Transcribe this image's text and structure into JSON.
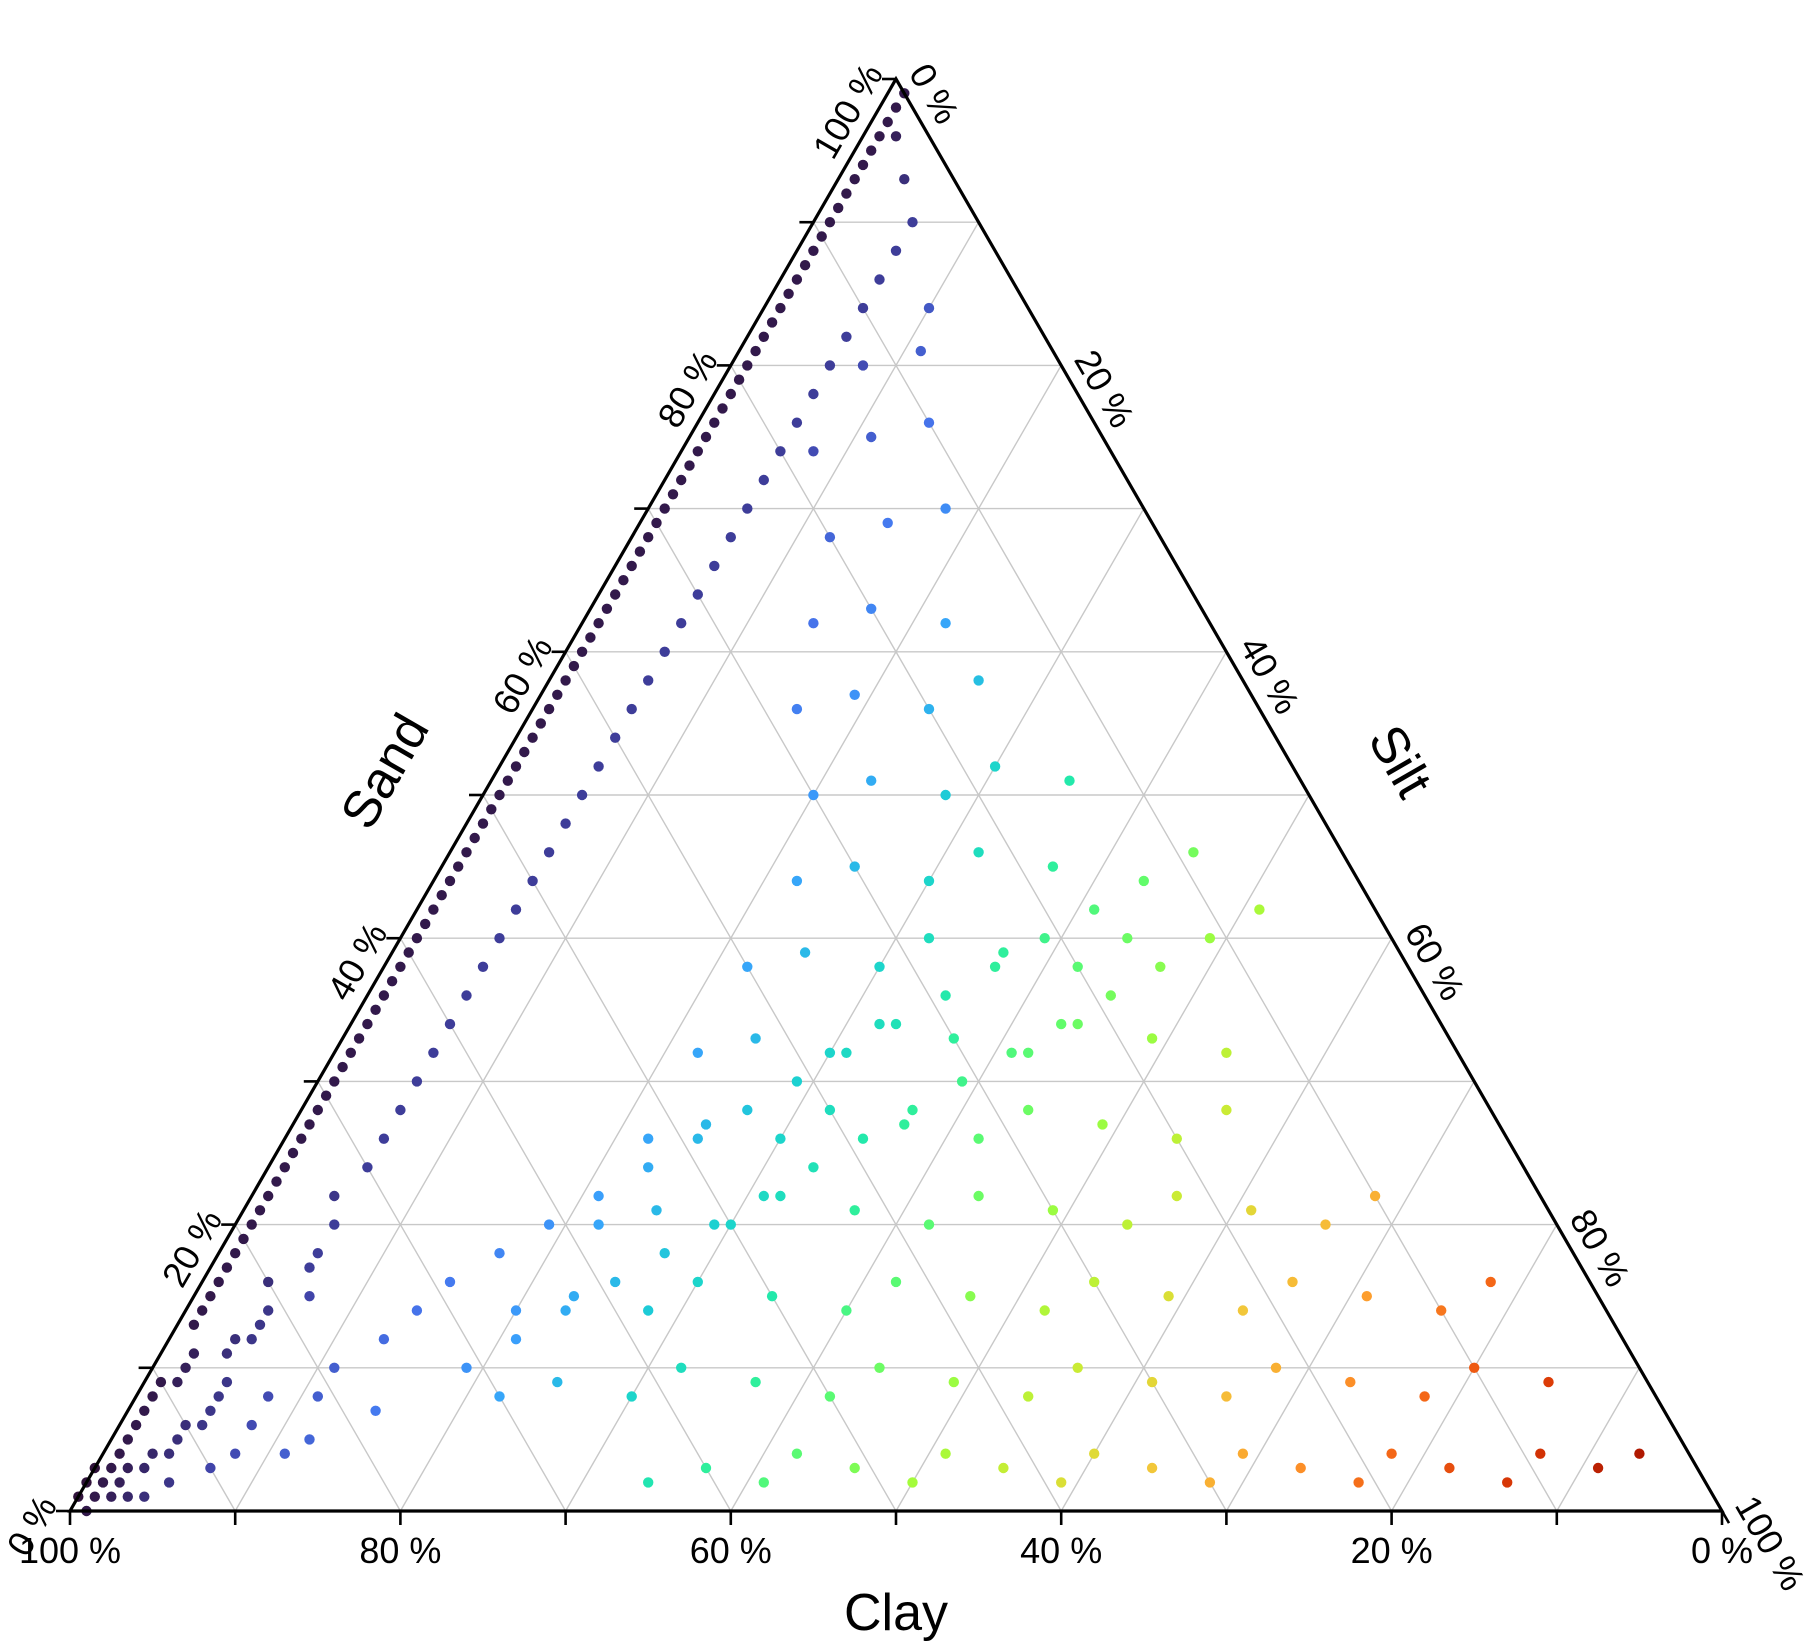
{
  "chart_data": {
    "type": "scatter",
    "subtype": "ternary",
    "axes": {
      "clay": {
        "label": "Clay",
        "ticks": [
          "100 %",
          "80 %",
          "60 %",
          "40 %",
          "20 %",
          "0 %"
        ]
      },
      "sand": {
        "label": "Sand",
        "ticks": [
          "0 %",
          "20 %",
          "40 %",
          "60 %",
          "80 %",
          "100 %"
        ]
      },
      "silt": {
        "label": "Silt",
        "ticks": [
          "0 %",
          "20 %",
          "40 %",
          "60 %",
          "80 %",
          "100 %"
        ]
      }
    },
    "grid": true,
    "gridStep": 10,
    "colorBy": "silt",
    "colormap": "turbo",
    "point_color_stops": [
      "#30123b",
      "#4145ab",
      "#4675ed",
      "#39a2fc",
      "#1bcfd4",
      "#24eca6",
      "#61fc6c",
      "#a4fc3b",
      "#d1e834",
      "#f3c63a",
      "#fe9b2d",
      "#f36315",
      "#d93806",
      "#b11901",
      "#7a0402"
    ],
    "columns": [
      "clay",
      "sand",
      "silt"
    ],
    "points": [
      [
        98,
        2,
        0
      ],
      [
        99,
        0,
        1
      ],
      [
        97,
        3,
        0
      ],
      [
        96,
        2,
        2
      ],
      [
        98,
        1,
        1
      ],
      [
        97,
        1,
        2
      ],
      [
        95,
        4,
        1
      ],
      [
        96,
        3,
        1
      ],
      [
        99,
        1,
        0
      ],
      [
        97,
        2,
        1
      ],
      [
        94,
        5,
        1
      ],
      [
        95,
        3,
        2
      ],
      [
        93,
        6,
        1
      ],
      [
        94,
        3,
        3
      ],
      [
        92,
        7,
        1
      ],
      [
        96,
        1,
        3
      ],
      [
        93,
        4,
        3
      ],
      [
        91,
        8,
        1
      ],
      [
        90,
        9,
        1
      ],
      [
        92,
        4,
        4
      ],
      [
        95,
        1,
        4
      ],
      [
        91,
        5,
        4
      ],
      [
        89,
        9,
        2
      ],
      [
        90,
        6,
        4
      ],
      [
        88,
        10,
        2
      ],
      [
        89,
        6,
        5
      ],
      [
        87,
        11,
        2
      ],
      [
        93,
        2,
        5
      ],
      [
        88,
        7,
        5
      ],
      [
        86,
        13,
        1
      ],
      [
        87,
        8,
        5
      ],
      [
        85,
        14,
        1
      ],
      [
        90,
        3,
        7
      ],
      [
        86,
        9,
        5
      ],
      [
        84,
        15,
        1
      ],
      [
        85,
        11,
        4
      ],
      [
        88,
        4,
        8
      ],
      [
        83,
        16,
        1
      ],
      [
        84,
        12,
        4
      ],
      [
        82,
        17,
        1
      ],
      [
        86,
        6,
        8
      ],
      [
        83,
        12,
        5
      ],
      [
        81,
        18,
        1
      ],
      [
        85,
        4,
        11
      ],
      [
        80,
        19,
        1
      ],
      [
        82,
        13,
        5
      ],
      [
        79,
        20,
        1
      ],
      [
        84,
        8,
        8
      ],
      [
        78,
        21,
        1
      ],
      [
        81,
        14,
        5
      ],
      [
        77,
        22,
        1
      ],
      [
        80,
        16,
        4
      ],
      [
        83,
        5,
        12
      ],
      [
        76,
        23,
        1
      ],
      [
        78,
        15,
        7
      ],
      [
        75,
        24,
        1
      ],
      [
        81,
        8,
        11
      ],
      [
        74,
        25,
        1
      ],
      [
        77,
        17,
        6
      ],
      [
        73,
        26,
        1
      ],
      [
        79,
        10,
        11
      ],
      [
        72,
        27,
        1
      ],
      [
        76,
        18,
        6
      ],
      [
        71,
        28,
        1
      ],
      [
        78,
        7,
        15
      ],
      [
        70,
        29,
        1
      ],
      [
        74,
        20,
        6
      ],
      [
        69,
        30,
        1
      ],
      [
        75,
        12,
        13
      ],
      [
        68,
        31,
        1
      ],
      [
        73,
        22,
        5
      ],
      [
        67,
        32,
        1
      ],
      [
        72,
        14,
        14
      ],
      [
        66,
        33,
        1
      ],
      [
        70,
        24,
        6
      ],
      [
        65,
        34,
        1
      ],
      [
        71,
        10,
        19
      ],
      [
        64,
        35,
        1
      ],
      [
        68,
        26,
        6
      ],
      [
        63,
        36,
        1
      ],
      [
        69,
        16,
        15
      ],
      [
        62,
        37,
        1
      ],
      [
        66,
        28,
        6
      ],
      [
        61,
        38,
        1
      ],
      [
        67,
        12,
        21
      ],
      [
        60,
        39,
        1
      ],
      [
        64,
        30,
        6
      ],
      [
        59,
        40,
        1
      ],
      [
        65,
        18,
        17
      ],
      [
        58,
        41,
        1
      ],
      [
        62,
        32,
        6
      ],
      [
        57,
        42,
        1
      ],
      [
        63,
        14,
        23
      ],
      [
        56,
        43,
        1
      ],
      [
        60,
        34,
        6
      ],
      [
        55,
        44,
        1
      ],
      [
        61,
        20,
        19
      ],
      [
        54,
        45,
        1
      ],
      [
        58,
        36,
        6
      ],
      [
        53,
        46,
        1
      ],
      [
        59,
        16,
        25
      ],
      [
        52,
        47,
        1
      ],
      [
        56,
        38,
        6
      ],
      [
        51,
        48,
        1
      ],
      [
        57,
        22,
        21
      ],
      [
        50,
        49,
        1
      ],
      [
        54,
        40,
        6
      ],
      [
        49,
        50,
        1
      ],
      [
        55,
        18,
        27
      ],
      [
        48,
        51,
        1
      ],
      [
        52,
        42,
        6
      ],
      [
        47,
        52,
        1
      ],
      [
        53,
        24,
        23
      ],
      [
        46,
        53,
        1
      ],
      [
        50,
        44,
        6
      ],
      [
        45,
        54,
        1
      ],
      [
        51,
        20,
        29
      ],
      [
        44,
        55,
        1
      ],
      [
        48,
        46,
        6
      ],
      [
        43,
        56,
        1
      ],
      [
        49,
        26,
        25
      ],
      [
        42,
        57,
        1
      ],
      [
        46,
        48,
        6
      ],
      [
        41,
        58,
        1
      ],
      [
        47,
        22,
        31
      ],
      [
        40,
        59,
        1
      ],
      [
        44,
        50,
        6
      ],
      [
        39,
        60,
        1
      ],
      [
        45,
        28,
        27
      ],
      [
        38,
        61,
        1
      ],
      [
        42,
        52,
        6
      ],
      [
        37,
        62,
        1
      ],
      [
        43,
        24,
        33
      ],
      [
        36,
        63,
        1
      ],
      [
        40,
        54,
        6
      ],
      [
        35,
        64,
        1
      ],
      [
        41,
        30,
        29
      ],
      [
        34,
        65,
        1
      ],
      [
        38,
        56,
        6
      ],
      [
        33,
        66,
        1
      ],
      [
        39,
        26,
        35
      ],
      [
        32,
        67,
        1
      ],
      [
        36,
        58,
        6
      ],
      [
        31,
        68,
        1
      ],
      [
        37,
        32,
        31
      ],
      [
        30,
        69,
        1
      ],
      [
        34,
        60,
        6
      ],
      [
        29,
        70,
        1
      ],
      [
        35,
        28,
        37
      ],
      [
        28,
        71,
        1
      ],
      [
        32,
        62,
        6
      ],
      [
        27,
        72,
        1
      ],
      [
        33,
        34,
        33
      ],
      [
        26,
        73,
        1
      ],
      [
        30,
        64,
        6
      ],
      [
        25,
        74,
        1
      ],
      [
        31,
        30,
        39
      ],
      [
        24,
        75,
        1
      ],
      [
        28,
        66,
        6
      ],
      [
        23,
        76,
        1
      ],
      [
        29,
        36,
        35
      ],
      [
        22,
        77,
        1
      ],
      [
        26,
        68,
        6
      ],
      [
        21,
        78,
        1
      ],
      [
        27,
        32,
        41
      ],
      [
        20,
        79,
        1
      ],
      [
        24,
        70,
        6
      ],
      [
        19,
        80,
        1
      ],
      [
        25,
        38,
        37
      ],
      [
        18,
        81,
        1
      ],
      [
        22,
        72,
        6
      ],
      [
        17,
        82,
        1
      ],
      [
        23,
        34,
        43
      ],
      [
        16,
        83,
        1
      ],
      [
        20,
        74,
        6
      ],
      [
        15,
        84,
        1
      ],
      [
        21,
        40,
        39
      ],
      [
        14,
        85,
        1
      ],
      [
        18,
        76,
        6
      ],
      [
        13,
        86,
        1
      ],
      [
        19,
        36,
        45
      ],
      [
        12,
        87,
        1
      ],
      [
        16,
        78,
        6
      ],
      [
        11,
        88,
        1
      ],
      [
        17,
        42,
        41
      ],
      [
        10,
        89,
        1
      ],
      [
        14,
        80,
        6
      ],
      [
        9,
        90,
        1
      ],
      [
        15,
        38,
        47
      ],
      [
        8,
        91,
        1
      ],
      [
        12,
        82,
        6
      ],
      [
        7,
        92,
        1
      ],
      [
        13,
        44,
        43
      ],
      [
        6,
        93,
        1
      ],
      [
        10,
        84,
        6
      ],
      [
        5,
        94,
        1
      ],
      [
        11,
        40,
        49
      ],
      [
        4,
        95,
        1
      ],
      [
        8,
        86,
        6
      ],
      [
        3,
        96,
        1
      ],
      [
        9,
        46,
        45
      ],
      [
        2,
        97,
        1
      ],
      [
        6,
        88,
        6
      ],
      [
        1,
        98,
        1
      ],
      [
        7,
        42,
        51
      ],
      [
        0,
        99,
        1
      ],
      [
        64,
        2,
        34
      ],
      [
        60,
        3,
        37
      ],
      [
        57,
        2,
        41
      ],
      [
        54,
        4,
        42
      ],
      [
        51,
        3,
        46
      ],
      [
        48,
        2,
        50
      ],
      [
        45,
        4,
        51
      ],
      [
        42,
        3,
        55
      ],
      [
        39,
        2,
        59
      ],
      [
        36,
        4,
        60
      ],
      [
        33,
        3,
        64
      ],
      [
        30,
        2,
        68
      ],
      [
        27,
        4,
        69
      ],
      [
        24,
        3,
        73
      ],
      [
        21,
        2,
        77
      ],
      [
        18,
        4,
        78
      ],
      [
        15,
        3,
        82
      ],
      [
        12,
        2,
        86
      ],
      [
        9,
        4,
        87
      ],
      [
        6,
        3,
        91
      ],
      [
        3,
        4,
        93
      ],
      [
        70,
        8,
        22
      ],
      [
        66,
        9,
        25
      ],
      [
        62,
        8,
        30
      ],
      [
        58,
        10,
        32
      ],
      [
        54,
        9,
        37
      ],
      [
        50,
        8,
        42
      ],
      [
        46,
        10,
        44
      ],
      [
        42,
        9,
        49
      ],
      [
        38,
        8,
        54
      ],
      [
        34,
        10,
        56
      ],
      [
        30,
        9,
        61
      ],
      [
        26,
        8,
        66
      ],
      [
        22,
        10,
        68
      ],
      [
        18,
        9,
        73
      ],
      [
        14,
        8,
        78
      ],
      [
        10,
        10,
        80
      ],
      [
        6,
        9,
        85
      ],
      [
        66,
        14,
        20
      ],
      [
        62,
        15,
        23
      ],
      [
        58,
        14,
        28
      ],
      [
        54,
        16,
        30
      ],
      [
        50,
        15,
        35
      ],
      [
        46,
        14,
        40
      ],
      [
        42,
        16,
        42
      ],
      [
        38,
        15,
        47
      ],
      [
        34,
        14,
        52
      ],
      [
        30,
        16,
        54
      ],
      [
        26,
        15,
        59
      ],
      [
        22,
        14,
        64
      ],
      [
        18,
        16,
        66
      ],
      [
        14,
        15,
        71
      ],
      [
        10,
        14,
        76
      ],
      [
        6,
        16,
        78
      ],
      [
        58,
        20,
        22
      ],
      [
        54,
        21,
        25
      ],
      [
        50,
        20,
        30
      ],
      [
        46,
        22,
        32
      ],
      [
        42,
        21,
        37
      ],
      [
        38,
        20,
        42
      ],
      [
        34,
        22,
        44
      ],
      [
        30,
        21,
        49
      ],
      [
        26,
        20,
        54
      ],
      [
        22,
        22,
        56
      ],
      [
        18,
        21,
        61
      ],
      [
        14,
        20,
        66
      ],
      [
        10,
        22,
        68
      ],
      [
        52,
        26,
        22
      ],
      [
        48,
        27,
        25
      ],
      [
        44,
        26,
        30
      ],
      [
        40,
        28,
        32
      ],
      [
        36,
        27,
        37
      ],
      [
        32,
        26,
        42
      ],
      [
        28,
        28,
        44
      ],
      [
        24,
        27,
        49
      ],
      [
        20,
        26,
        54
      ],
      [
        16,
        28,
        56
      ],
      [
        46,
        32,
        22
      ],
      [
        42,
        33,
        25
      ],
      [
        38,
        32,
        30
      ],
      [
        34,
        34,
        32
      ],
      [
        30,
        33,
        37
      ],
      [
        26,
        32,
        42
      ],
      [
        22,
        34,
        44
      ],
      [
        18,
        33,
        49
      ],
      [
        14,
        32,
        54
      ],
      [
        40,
        38,
        22
      ],
      [
        36,
        39,
        25
      ],
      [
        32,
        38,
        30
      ],
      [
        28,
        40,
        32
      ],
      [
        24,
        39,
        37
      ],
      [
        20,
        38,
        42
      ],
      [
        16,
        40,
        44
      ],
      [
        34,
        44,
        22
      ],
      [
        30,
        45,
        25
      ],
      [
        26,
        44,
        30
      ],
      [
        22,
        46,
        32
      ],
      [
        18,
        45,
        37
      ],
      [
        30,
        50,
        20
      ],
      [
        26,
        51,
        23
      ],
      [
        22,
        50,
        28
      ],
      [
        18,
        52,
        30
      ],
      [
        14,
        51,
        35
      ],
      [
        28,
        56,
        16
      ],
      [
        24,
        57,
        19
      ],
      [
        20,
        56,
        24
      ],
      [
        16,
        58,
        26
      ],
      [
        24,
        62,
        14
      ],
      [
        20,
        63,
        17
      ],
      [
        16,
        62,
        22
      ],
      [
        20,
        68,
        12
      ],
      [
        16,
        69,
        15
      ],
      [
        12,
        70,
        18
      ],
      [
        18,
        74,
        8
      ],
      [
        14,
        75,
        11
      ],
      [
        10,
        76,
        14
      ],
      [
        12,
        80,
        8
      ],
      [
        8,
        81,
        11
      ],
      [
        6,
        84,
        10
      ],
      [
        4,
        90,
        6
      ],
      [
        3,
        93,
        4
      ],
      [
        2,
        96,
        2
      ]
    ]
  }
}
